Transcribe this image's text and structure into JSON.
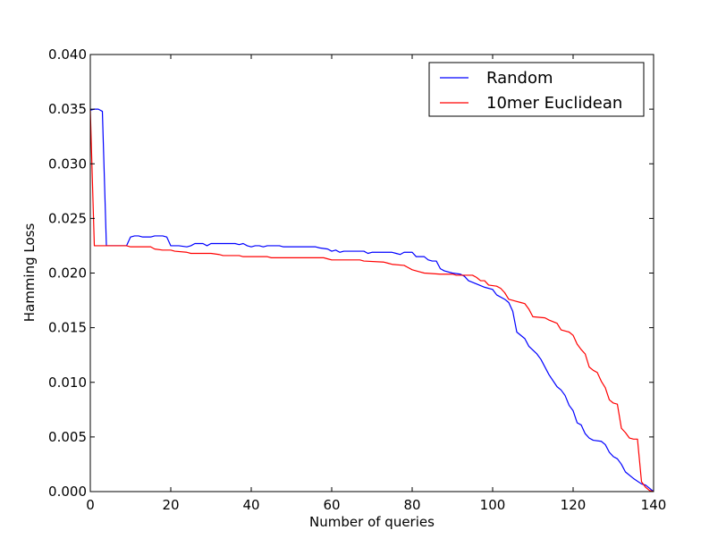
{
  "chart_data": {
    "type": "line",
    "title": "",
    "xlabel": "Number of queries",
    "ylabel": "Hamming Loss",
    "xlim": [
      0,
      140
    ],
    "ylim": [
      0.0,
      0.04
    ],
    "xticks": [
      0,
      20,
      40,
      60,
      80,
      100,
      120,
      140
    ],
    "xtick_labels": [
      "0",
      "20",
      "40",
      "60",
      "80",
      "100",
      "120",
      "140"
    ],
    "yticks": [
      0.0,
      0.005,
      0.01,
      0.015,
      0.02,
      0.025,
      0.03,
      0.035,
      0.04
    ],
    "ytick_labels": [
      "0.000",
      "0.005",
      "0.010",
      "0.015",
      "0.020",
      "0.025",
      "0.030",
      "0.035",
      "0.040"
    ],
    "grid": false,
    "legend_position": "top-right",
    "series": [
      {
        "name": "Random",
        "color": "#0000ff",
        "points": [
          [
            0,
            0.0349
          ],
          [
            1,
            0.035
          ],
          [
            2,
            0.035
          ],
          [
            3,
            0.0348
          ],
          [
            4,
            0.0225
          ],
          [
            5,
            0.0225
          ],
          [
            9,
            0.0225
          ],
          [
            10,
            0.0233
          ],
          [
            11,
            0.0234
          ],
          [
            12,
            0.0234
          ],
          [
            13,
            0.0233
          ],
          [
            15,
            0.0233
          ],
          [
            16,
            0.0234
          ],
          [
            18,
            0.0234
          ],
          [
            19,
            0.0233
          ],
          [
            20,
            0.0225
          ],
          [
            22,
            0.0225
          ],
          [
            24,
            0.0224
          ],
          [
            25,
            0.0225
          ],
          [
            26,
            0.0227
          ],
          [
            28,
            0.0227
          ],
          [
            29,
            0.0225
          ],
          [
            30,
            0.0227
          ],
          [
            36,
            0.0227
          ],
          [
            37,
            0.0226
          ],
          [
            38,
            0.0227
          ],
          [
            39,
            0.0225
          ],
          [
            40,
            0.0224
          ],
          [
            41,
            0.0225
          ],
          [
            42,
            0.0225
          ],
          [
            43,
            0.0224
          ],
          [
            44,
            0.0225
          ],
          [
            47,
            0.0225
          ],
          [
            48,
            0.0224
          ],
          [
            56,
            0.0224
          ],
          [
            57,
            0.0223
          ],
          [
            59,
            0.0222
          ],
          [
            60,
            0.022
          ],
          [
            61,
            0.0221
          ],
          [
            62,
            0.0219
          ],
          [
            63,
            0.022
          ],
          [
            68,
            0.022
          ],
          [
            69,
            0.0218
          ],
          [
            70,
            0.0219
          ],
          [
            75,
            0.0219
          ],
          [
            76,
            0.0218
          ],
          [
            77,
            0.0217
          ],
          [
            78,
            0.0219
          ],
          [
            80,
            0.0219
          ],
          [
            81,
            0.0215
          ],
          [
            83,
            0.0215
          ],
          [
            84,
            0.0212
          ],
          [
            85,
            0.0211
          ],
          [
            86,
            0.0211
          ],
          [
            87,
            0.0204
          ],
          [
            88,
            0.0202
          ],
          [
            90,
            0.02
          ],
          [
            92,
            0.0199
          ],
          [
            93,
            0.0197
          ],
          [
            94,
            0.0193
          ],
          [
            96,
            0.019
          ],
          [
            98,
            0.0187
          ],
          [
            100,
            0.0185
          ],
          [
            101,
            0.018
          ],
          [
            103,
            0.0176
          ],
          [
            104,
            0.0173
          ],
          [
            105,
            0.0165
          ],
          [
            106,
            0.0146
          ],
          [
            108,
            0.014
          ],
          [
            109,
            0.0133
          ],
          [
            111,
            0.0126
          ],
          [
            112,
            0.0121
          ],
          [
            114,
            0.0107
          ],
          [
            116,
            0.0096
          ],
          [
            117,
            0.0093
          ],
          [
            118,
            0.0088
          ],
          [
            119,
            0.0079
          ],
          [
            120,
            0.0074
          ],
          [
            121,
            0.0063
          ],
          [
            122,
            0.0061
          ],
          [
            123,
            0.0053
          ],
          [
            124,
            0.0049
          ],
          [
            125,
            0.0047
          ],
          [
            127,
            0.0046
          ],
          [
            128,
            0.0043
          ],
          [
            129,
            0.0036
          ],
          [
            130,
            0.0032
          ],
          [
            131,
            0.003
          ],
          [
            132,
            0.0025
          ],
          [
            133,
            0.0018
          ],
          [
            135,
            0.0012
          ],
          [
            137,
            0.0007
          ],
          [
            138,
            0.0006
          ],
          [
            139,
            0.0003
          ],
          [
            140,
            0.0
          ]
        ]
      },
      {
        "name": "10mer Euclidean",
        "color": "#ff0000",
        "points": [
          [
            0,
            0.0349
          ],
          [
            1,
            0.0225
          ],
          [
            9,
            0.0225
          ],
          [
            10,
            0.0224
          ],
          [
            15,
            0.0224
          ],
          [
            16,
            0.0222
          ],
          [
            18,
            0.0221
          ],
          [
            20,
            0.0221
          ],
          [
            21,
            0.022
          ],
          [
            24,
            0.0219
          ],
          [
            25,
            0.0218
          ],
          [
            30,
            0.0218
          ],
          [
            32,
            0.0217
          ],
          [
            33,
            0.0216
          ],
          [
            37,
            0.0216
          ],
          [
            38,
            0.0215
          ],
          [
            39,
            0.0215
          ],
          [
            40,
            0.0215
          ],
          [
            44,
            0.0215
          ],
          [
            45,
            0.0214
          ],
          [
            58,
            0.0214
          ],
          [
            59,
            0.0213
          ],
          [
            60,
            0.0212
          ],
          [
            67,
            0.0212
          ],
          [
            68,
            0.0211
          ],
          [
            73,
            0.021
          ],
          [
            74,
            0.0209
          ],
          [
            75,
            0.0208
          ],
          [
            78,
            0.0207
          ],
          [
            79,
            0.0205
          ],
          [
            80,
            0.0203
          ],
          [
            81,
            0.0202
          ],
          [
            82,
            0.0201
          ],
          [
            83,
            0.02
          ],
          [
            87,
            0.0199
          ],
          [
            88,
            0.0199
          ],
          [
            90,
            0.0199
          ],
          [
            91,
            0.0198
          ],
          [
            95,
            0.0198
          ],
          [
            96,
            0.0196
          ],
          [
            97,
            0.0193
          ],
          [
            98,
            0.0193
          ],
          [
            99,
            0.0189
          ],
          [
            101,
            0.0188
          ],
          [
            102,
            0.0186
          ],
          [
            103,
            0.0182
          ],
          [
            104,
            0.0176
          ],
          [
            106,
            0.0174
          ],
          [
            107,
            0.0173
          ],
          [
            108,
            0.0172
          ],
          [
            109,
            0.0167
          ],
          [
            110,
            0.016
          ],
          [
            113,
            0.0159
          ],
          [
            114,
            0.0157
          ],
          [
            116,
            0.0154
          ],
          [
            117,
            0.0148
          ],
          [
            118,
            0.0147
          ],
          [
            119,
            0.0146
          ],
          [
            120,
            0.0143
          ],
          [
            121,
            0.0135
          ],
          [
            122,
            0.013
          ],
          [
            123,
            0.0126
          ],
          [
            124,
            0.0114
          ],
          [
            125,
            0.0111
          ],
          [
            126,
            0.0109
          ],
          [
            127,
            0.0101
          ],
          [
            128,
            0.0095
          ],
          [
            129,
            0.0084
          ],
          [
            130,
            0.0081
          ],
          [
            131,
            0.008
          ],
          [
            132,
            0.0058
          ],
          [
            133,
            0.0054
          ],
          [
            134,
            0.0049
          ],
          [
            135,
            0.0048
          ],
          [
            136,
            0.0048
          ],
          [
            137,
            0.0009
          ],
          [
            138,
            0.0004
          ],
          [
            139,
            0.0001
          ],
          [
            140,
            0.0
          ]
        ]
      }
    ]
  }
}
